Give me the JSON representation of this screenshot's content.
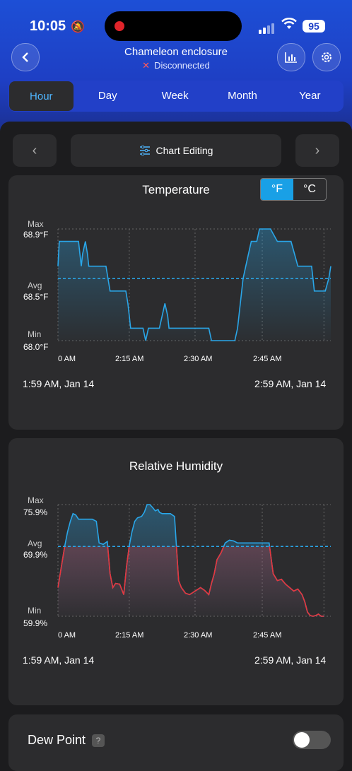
{
  "status_bar": {
    "time": "10:05",
    "battery": "95"
  },
  "header": {
    "title": "Chameleon enclosure",
    "connection": "Disconnected",
    "back_icon": "chevron-left-icon",
    "chart_icon": "bar-chart-icon",
    "settings_icon": "gear-icon"
  },
  "tabs": [
    {
      "label": "Hour"
    },
    {
      "label": "Day"
    },
    {
      "label": "Week"
    },
    {
      "label": "Month"
    },
    {
      "label": "Year"
    }
  ],
  "nav": {
    "prev": "‹",
    "edit": "Chart Editing",
    "next": "›"
  },
  "temperature": {
    "title": "Temperature",
    "unit_f": "°F",
    "unit_c": "°C",
    "max_label": "Max",
    "max_value": "68.9°F",
    "avg_label": "Avg",
    "avg_value": "68.5°F",
    "min_label": "Min",
    "min_value": "68.0°F",
    "xticks": [
      "0 AM",
      "2:15 AM",
      "2:30 AM",
      "2:45 AM"
    ],
    "start": "1:59 AM,  Jan 14",
    "end": "2:59 AM,  Jan 14"
  },
  "humidity": {
    "title": "Relative Humidity",
    "max_label": "Max",
    "max_value": "75.9%",
    "avg_label": "Avg",
    "avg_value": "69.9%",
    "min_label": "Min",
    "min_value": "59.9%",
    "xticks": [
      "0 AM",
      "2:15 AM",
      "2:30 AM",
      "2:45 AM"
    ],
    "start": "1:59 AM,  Jan 14",
    "end": "2:59 AM,  Jan 14"
  },
  "dew_point": {
    "label": "Dew Point",
    "help": "?",
    "enabled": false
  },
  "chart_data": [
    {
      "type": "line",
      "title": "Temperature",
      "xlabel": "",
      "ylabel": "",
      "ylim": [
        68.0,
        68.9
      ],
      "avg": 68.5,
      "color": "#2aa6e8",
      "x": [
        0,
        2,
        4,
        10,
        12,
        14,
        16,
        18,
        22,
        28,
        30,
        32,
        34,
        36,
        40,
        43,
        45,
        47,
        49,
        51,
        53,
        55,
        58,
        62,
        66,
        70,
        73,
        76,
        80,
        88,
        90,
        92,
        94,
        96,
        99,
        102,
        104,
        106,
        110,
        122,
        124,
        128,
        132,
        136,
        140,
        144,
        148,
        152,
        156,
        160,
        162,
        164,
        168,
        170,
        174,
        178,
        180,
        184,
        186,
        190,
        195,
        200,
        204,
        206,
        210,
        214,
        216,
        220,
        224,
        230,
        234,
        238,
        242,
        246,
        250,
        253,
        256,
        258,
        262,
        266,
        270,
        274,
        278,
        282,
        286,
        290,
        294,
        300,
        306,
        310,
        320,
        330,
        340,
        345,
        350,
        355,
        360,
        363,
        365,
        368,
        370,
        372,
        374,
        378,
        382,
        385,
        390,
        395,
        398
      ],
      "values": [
        68.6,
        68.8,
        68.8,
        68.8,
        68.8,
        68.8,
        68.8,
        68.8,
        68.8,
        68.8,
        68.8,
        68.7,
        68.6,
        68.7,
        68.8,
        68.7,
        68.6,
        68.6,
        68.6,
        68.6,
        68.6,
        68.6,
        68.6,
        68.6,
        68.6,
        68.6,
        68.5,
        68.4,
        68.4,
        68.4,
        68.4,
        68.4,
        68.4,
        68.4,
        68.4,
        68.3,
        68.2,
        68.1,
        68.1,
        68.1,
        68.1,
        68.0,
        68.1,
        68.1,
        68.1,
        68.1,
        68.1,
        68.2,
        68.3,
        68.2,
        68.1,
        68.1,
        68.1,
        68.1,
        68.1,
        68.1,
        68.1,
        68.1,
        68.1,
        68.1,
        68.1,
        68.1,
        68.1,
        68.1,
        68.1,
        68.1,
        68.1,
        68.1,
        68.0,
        68.0,
        68.0,
        68.0,
        68.0,
        68.0,
        68.0,
        68.0,
        68.0,
        68.0,
        68.1,
        68.3,
        68.5,
        68.6,
        68.7,
        68.8,
        68.8,
        68.8,
        68.9,
        68.9,
        68.9,
        68.9,
        68.8,
        68.8,
        68.8,
        68.7,
        68.6,
        68.6,
        68.6,
        68.6,
        68.6,
        68.6,
        68.6,
        68.5,
        68.4,
        68.4,
        68.4,
        68.4,
        68.4,
        68.5,
        68.6
      ]
    },
    {
      "type": "line",
      "title": "Relative Humidity",
      "xlabel": "",
      "ylabel": "",
      "ylim": [
        59.9,
        75.9
      ],
      "avg": 69.9,
      "color": "#2aa6e8",
      "below_avg_color": "#e8343a",
      "x": [
        0,
        5,
        10,
        14,
        18,
        22,
        26,
        30,
        36,
        42,
        46,
        50,
        56,
        60,
        66,
        72,
        76,
        80,
        84,
        90,
        96,
        100,
        104,
        108,
        112,
        116,
        122,
        126,
        130,
        134,
        138,
        142,
        146,
        148,
        152,
        156,
        160,
        164,
        170,
        176,
        180,
        186,
        192,
        200,
        208,
        214,
        220,
        224,
        228,
        232,
        238,
        244,
        250,
        256,
        262,
        268,
        274,
        280,
        286,
        290,
        296,
        302,
        308,
        314,
        320,
        326,
        332,
        338,
        344,
        350,
        356,
        360,
        364,
        368,
        372,
        376,
        380,
        384,
        388
      ],
      "values": [
        64.0,
        67.0,
        70.0,
        72.0,
        73.5,
        74.6,
        74.4,
        73.8,
        73.8,
        73.8,
        73.8,
        73.8,
        73.5,
        70.4,
        70.2,
        70.6,
        66.0,
        64.0,
        64.6,
        64.5,
        63.0,
        67.0,
        70.0,
        72.0,
        73.5,
        74.0,
        74.2,
        74.8,
        75.9,
        75.9,
        75.5,
        75.0,
        75.2,
        74.8,
        74.6,
        74.6,
        74.6,
        74.6,
        74.2,
        65.0,
        64.0,
        63.2,
        63.0,
        63.5,
        64.0,
        63.6,
        63.0,
        64.6,
        66.0,
        68.0,
        69.0,
        70.4,
        70.8,
        70.7,
        70.4,
        70.4,
        70.4,
        70.4,
        70.4,
        70.4,
        70.4,
        70.4,
        70.4,
        66.0,
        65.0,
        65.2,
        64.5,
        64.0,
        63.5,
        63.8,
        63.0,
        62.0,
        60.5,
        60.0,
        59.9,
        60.0,
        60.2,
        59.9,
        59.9
      ]
    }
  ]
}
